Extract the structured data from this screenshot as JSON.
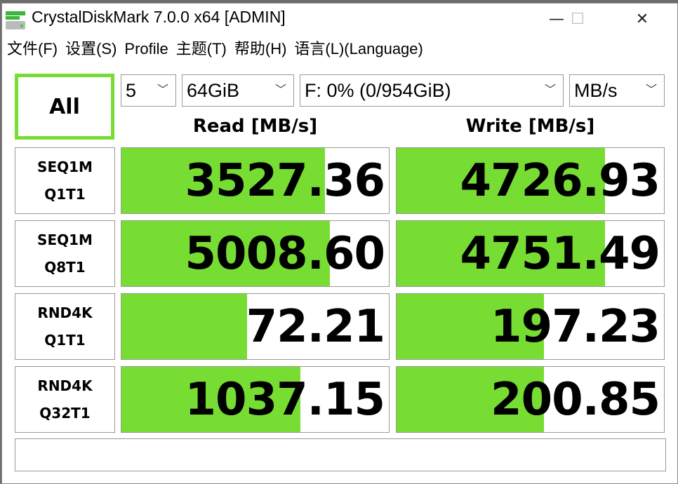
{
  "window": {
    "title": "CrystalDiskMark 7.0.0 x64 [ADMIN]",
    "minimize": "—",
    "maximize": "☐",
    "close": "✕"
  },
  "menu": [
    "文件(F)",
    "设置(S)",
    "Profile",
    "主题(T)",
    "帮助(H)",
    "语言(L)(Language)"
  ],
  "controls": {
    "all_button": "All",
    "count": "5",
    "size": "64GiB",
    "drive": "F: 0% (0/954GiB)",
    "unit": "MB/s"
  },
  "headers": {
    "read": "Read [MB/s]",
    "write": "Write [MB/s]"
  },
  "accent": "#77dd33",
  "rows": [
    {
      "line1": "SEQ1M",
      "line2": "Q1T1",
      "read": "3527.36",
      "write": "4726.93",
      "read_fill": 0.76,
      "write_fill": 0.78
    },
    {
      "line1": "SEQ1M",
      "line2": "Q8T1",
      "read": "5008.60",
      "write": "4751.49",
      "read_fill": 0.78,
      "write_fill": 0.78
    },
    {
      "line1": "RND4K",
      "line2": "Q1T1",
      "read": "72.21",
      "write": "197.23",
      "read_fill": 0.47,
      "write_fill": 0.55
    },
    {
      "line1": "RND4K",
      "line2": "Q32T1",
      "read": "1037.15",
      "write": "200.85",
      "read_fill": 0.67,
      "write_fill": 0.55
    }
  ],
  "status": ""
}
